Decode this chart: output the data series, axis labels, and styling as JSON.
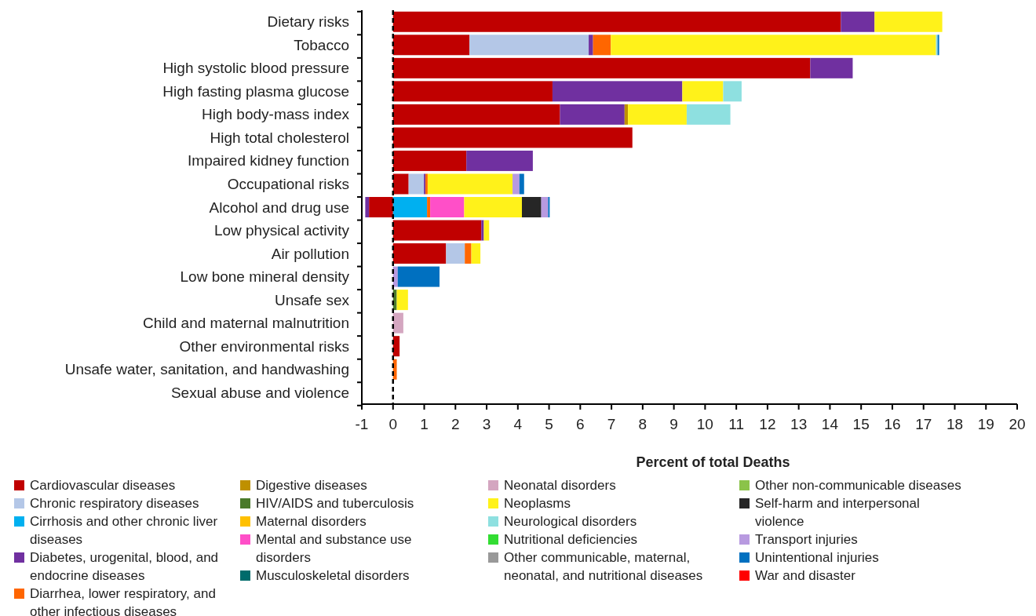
{
  "chart_data": {
    "type": "bar",
    "orientation": "horizontal",
    "stacked": true,
    "xlabel": "Percent of total Deaths",
    "categories": [
      "Dietary risks",
      "Tobacco",
      "High systolic blood pressure",
      "High fasting plasma glucose",
      "High body-mass index",
      "High total cholesterol",
      "Impaired kidney function",
      "Occupational risks",
      "Alcohol and drug use",
      "Low physical activity",
      "Air pollution",
      "Low bone mineral density",
      "Unsafe sex",
      "Child and maternal malnutrition",
      "Other environmental risks",
      "Unsafe water, sanitation, and handwashing",
      "Sexual abuse and violence"
    ],
    "xlim": [
      -1,
      20
    ],
    "xticks": [
      -1,
      0,
      1,
      2,
      3,
      4,
      5,
      6,
      7,
      8,
      9,
      10,
      11,
      12,
      13,
      14,
      15,
      16,
      17,
      18,
      19,
      20
    ],
    "ref_lines": [
      {
        "axis": "x",
        "value": 0,
        "color": "#000000",
        "line_style": "dashed"
      }
    ],
    "legend": "bottom",
    "series": [
      {
        "name": "Cardiovascular diseases",
        "color": "#c00000",
        "values": [
          14.35,
          2.45,
          13.37,
          5.11,
          5.35,
          7.67,
          2.35,
          0.5,
          -0.77,
          2.83,
          1.7,
          null,
          null,
          null,
          0.21,
          null,
          null
        ]
      },
      {
        "name": "Chronic respiratory diseases",
        "color": "#b4c7e7",
        "values": [
          null,
          3.82,
          null,
          null,
          null,
          null,
          null,
          0.49,
          null,
          null,
          0.6,
          null,
          null,
          null,
          null,
          null,
          null
        ]
      },
      {
        "name": "Cirrhosis and other chronic liver diseases",
        "color": "#00b0f0",
        "values": [
          null,
          null,
          null,
          null,
          null,
          null,
          null,
          null,
          1.09,
          null,
          null,
          null,
          null,
          null,
          null,
          null,
          null
        ]
      },
      {
        "name": "Diabetes, urogenital, blood, and endocrine diseases",
        "color": "#7030a0",
        "values": [
          1.08,
          0.14,
          1.36,
          4.16,
          2.07,
          null,
          2.13,
          0.05,
          -0.12,
          0.08,
          null,
          null,
          null,
          null,
          null,
          null,
          null
        ]
      },
      {
        "name": "Diarrhea, lower respiratory, and other infectious diseases",
        "color": "#ff6600",
        "values": [
          null,
          0.57,
          null,
          null,
          null,
          null,
          null,
          0.07,
          0.1,
          null,
          0.21,
          null,
          null,
          null,
          null,
          0.12,
          null
        ]
      },
      {
        "name": "Digestive diseases",
        "color": "#bf9000",
        "values": [
          null,
          null,
          null,
          null,
          0.11,
          null,
          null,
          null,
          null,
          null,
          null,
          null,
          null,
          null,
          null,
          null,
          null
        ]
      },
      {
        "name": "HIV/AIDS and tuberculosis",
        "color": "#4a7a2a",
        "values": [
          null,
          null,
          null,
          null,
          null,
          null,
          null,
          null,
          null,
          null,
          null,
          null,
          0.12,
          null,
          null,
          null,
          null
        ]
      },
      {
        "name": "Maternal disorders",
        "color": "#ffc000",
        "values": [
          null,
          null,
          null,
          null,
          null,
          null,
          null,
          null,
          null,
          null,
          null,
          null,
          null,
          null,
          null,
          null,
          null
        ]
      },
      {
        "name": "Mental and substance use disorders",
        "color": "#ff4fc8",
        "values": [
          null,
          null,
          null,
          null,
          null,
          null,
          null,
          null,
          1.09,
          null,
          null,
          null,
          null,
          null,
          null,
          null,
          null
        ]
      },
      {
        "name": "Musculoskeletal disorders",
        "color": "#006b6b",
        "values": [
          null,
          null,
          null,
          null,
          null,
          null,
          null,
          null,
          null,
          null,
          null,
          null,
          null,
          null,
          null,
          null,
          null
        ]
      },
      {
        "name": "Neonatal disorders",
        "color": "#d4a6c0",
        "values": [
          null,
          null,
          null,
          null,
          null,
          null,
          null,
          null,
          null,
          null,
          null,
          null,
          null,
          0.33,
          null,
          null,
          null
        ]
      },
      {
        "name": "Neoplasms",
        "color": "#fff21a",
        "values": [
          2.17,
          10.42,
          null,
          1.31,
          1.88,
          null,
          null,
          2.72,
          1.85,
          0.17,
          0.29,
          null,
          0.36,
          null,
          null,
          null,
          null
        ]
      },
      {
        "name": "Neurological disorders",
        "color": "#8ee0e0",
        "values": [
          null,
          0.05,
          null,
          0.59,
          1.4,
          null,
          null,
          null,
          null,
          null,
          null,
          null,
          null,
          null,
          null,
          null,
          null
        ]
      },
      {
        "name": "Nutritional deficiencies",
        "color": "#33dd33",
        "values": [
          null,
          null,
          null,
          null,
          null,
          null,
          null,
          null,
          null,
          null,
          null,
          null,
          null,
          null,
          null,
          null,
          null
        ]
      },
      {
        "name": "Other communicable, maternal, neonatal, and nutritional diseases",
        "color": "#999999",
        "values": [
          null,
          null,
          null,
          null,
          null,
          null,
          null,
          null,
          null,
          null,
          null,
          null,
          null,
          null,
          null,
          null,
          null
        ]
      },
      {
        "name": "Other non-communicable diseases",
        "color": "#8bc34a",
        "values": [
          null,
          null,
          null,
          null,
          null,
          null,
          null,
          null,
          null,
          null,
          null,
          null,
          null,
          null,
          null,
          null,
          null
        ]
      },
      {
        "name": "Self-harm and interpersonal violence",
        "color": "#262626",
        "values": [
          null,
          null,
          null,
          null,
          null,
          null,
          null,
          null,
          0.62,
          null,
          null,
          null,
          null,
          null,
          null,
          null,
          null
        ]
      },
      {
        "name": "Transport injuries",
        "color": "#b89ae0",
        "values": [
          null,
          null,
          null,
          null,
          null,
          null,
          null,
          0.22,
          0.22,
          null,
          null,
          0.15,
          null,
          null,
          null,
          null,
          null
        ]
      },
      {
        "name": "Unintentional injuries",
        "color": "#0070c0",
        "values": [
          null,
          0.05,
          null,
          null,
          null,
          null,
          null,
          0.15,
          0.05,
          null,
          null,
          1.34,
          null,
          null,
          null,
          null,
          null
        ]
      },
      {
        "name": "War and disaster",
        "color": "#ff0000",
        "values": [
          null,
          null,
          null,
          null,
          null,
          null,
          null,
          null,
          null,
          null,
          null,
          null,
          null,
          null,
          null,
          null,
          null
        ]
      }
    ]
  }
}
